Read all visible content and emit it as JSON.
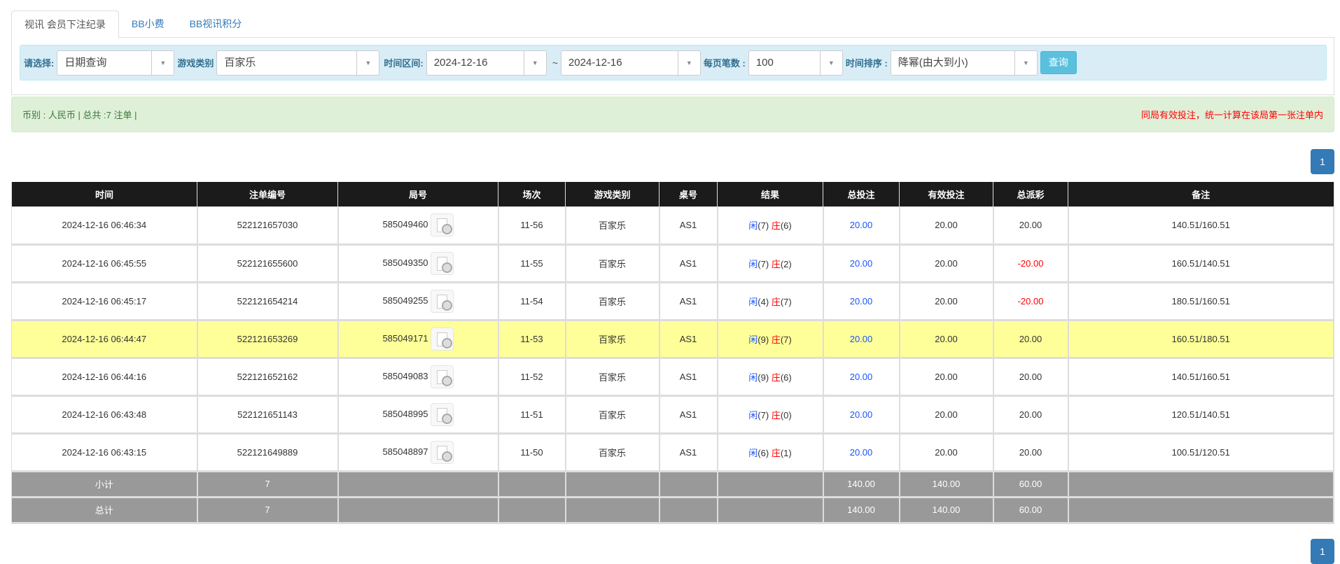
{
  "tabs": [
    {
      "label": "视讯 会员下注纪录",
      "active": true
    },
    {
      "label": "BB小费"
    },
    {
      "label": "BB视讯积分"
    }
  ],
  "filter": {
    "select_label": "请选择:",
    "select_value": "日期查询",
    "game_label": "游戏类别",
    "game_value": "百家乐",
    "range_label": "时间区间:",
    "date_from": "2024-12-16",
    "tilde": "~",
    "date_to": "2024-12-16",
    "per_page_label": "每页笔数 :",
    "per_page_value": "100",
    "sort_label": "时间排序 :",
    "sort_value": "降幂(由大到小)",
    "query_button": "查询"
  },
  "summary": {
    "left": "币别 : 人民币 | 总共 :7 注单 |",
    "right": "同局有效投注，统一计算在该局第一张注单内"
  },
  "pagination": {
    "current": "1"
  },
  "colors": {
    "header_bg": "#1b1b1b",
    "highlight_row": "#ffff99",
    "player": "#1a53ff",
    "banker": "#ff0000",
    "negative": "#ff0000",
    "summary_bg": "#999999"
  },
  "table": {
    "headers": [
      "时间",
      "注单编号",
      "局号",
      "场次",
      "游戏类别",
      "桌号",
      "结果",
      "总投注",
      "有效投注",
      "总派彩",
      "备注"
    ],
    "rows": [
      {
        "time": "2024-12-16 06:46:34",
        "order": "522121657030",
        "round": "585049460",
        "session": "11-56",
        "game": "百家乐",
        "table": "AS1",
        "p": "闲",
        "pv": "(7)",
        "b": "庄",
        "bv": "(6)",
        "bet": "20.00",
        "valid": "20.00",
        "payout": "20.00",
        "note": "140.51/160.51"
      },
      {
        "time": "2024-12-16 06:45:55",
        "order": "522121655600",
        "round": "585049350",
        "session": "11-55",
        "game": "百家乐",
        "table": "AS1",
        "p": "闲",
        "pv": "(7)",
        "b": "庄",
        "bv": "(2)",
        "bet": "20.00",
        "valid": "20.00",
        "payout": "-20.00",
        "note": "160.51/140.51"
      },
      {
        "time": "2024-12-16 06:45:17",
        "order": "522121654214",
        "round": "585049255",
        "session": "11-54",
        "game": "百家乐",
        "table": "AS1",
        "p": "闲",
        "pv": "(4)",
        "b": "庄",
        "bv": "(7)",
        "bet": "20.00",
        "valid": "20.00",
        "payout": "-20.00",
        "note": "180.51/160.51"
      },
      {
        "time": "2024-12-16 06:44:47",
        "order": "522121653269",
        "round": "585049171",
        "session": "11-53",
        "game": "百家乐",
        "table": "AS1",
        "p": "闲",
        "pv": "(9)",
        "b": "庄",
        "bv": "(7)",
        "bet": "20.00",
        "valid": "20.00",
        "payout": "20.00",
        "note": "160.51/180.51",
        "highlight": true
      },
      {
        "time": "2024-12-16 06:44:16",
        "order": "522121652162",
        "round": "585049083",
        "session": "11-52",
        "game": "百家乐",
        "table": "AS1",
        "p": "闲",
        "pv": "(9)",
        "b": "庄",
        "bv": "(6)",
        "bet": "20.00",
        "valid": "20.00",
        "payout": "20.00",
        "note": "140.51/160.51"
      },
      {
        "time": "2024-12-16 06:43:48",
        "order": "522121651143",
        "round": "585048995",
        "session": "11-51",
        "game": "百家乐",
        "table": "AS1",
        "p": "闲",
        "pv": "(7)",
        "b": "庄",
        "bv": "(0)",
        "bet": "20.00",
        "valid": "20.00",
        "payout": "20.00",
        "note": "120.51/140.51"
      },
      {
        "time": "2024-12-16 06:43:15",
        "order": "522121649889",
        "round": "585048897",
        "session": "11-50",
        "game": "百家乐",
        "table": "AS1",
        "p": "闲",
        "pv": "(6)",
        "b": "庄",
        "bv": "(1)",
        "bet": "20.00",
        "valid": "20.00",
        "payout": "20.00",
        "note": "100.51/120.51"
      }
    ],
    "subtotal": {
      "label": "小计",
      "count": "7",
      "bet": "140.00",
      "valid": "140.00",
      "payout": "60.00"
    },
    "total": {
      "label": "总计",
      "count": "7",
      "bet": "140.00",
      "valid": "140.00",
      "payout": "60.00"
    }
  }
}
